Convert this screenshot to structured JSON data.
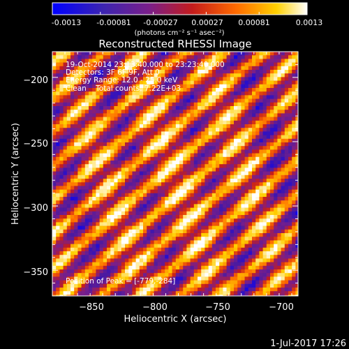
{
  "colorbar": {
    "ticks": [
      "-0.0013",
      "-0.00081",
      "-0.00027",
      "0.00027",
      "0.00081",
      "0.0013"
    ],
    "unit_label": "(photons cm⁻² s⁻¹ asec⁻²)",
    "range": [
      -0.0013,
      0.0013
    ]
  },
  "chart_data": {
    "type": "heatmap",
    "title": "Reconstructed RHESSI Image",
    "xlabel": "Heliocentric X (arcsec)",
    "ylabel": "Heliocentric Y (arcsec)",
    "xlim": [
      -875,
      -680
    ],
    "ylim": [
      -370,
      -180
    ],
    "x_ticks": [
      -850,
      -800,
      -750,
      -700
    ],
    "y_ticks": [
      -200,
      -250,
      -300,
      -350
    ],
    "x_tick_labels": [
      "−850",
      "−800",
      "−750",
      "−700"
    ],
    "y_tick_labels": [
      "−200",
      "−250",
      "−300",
      "−350"
    ],
    "annotations": [
      "19-Oct-2014 23:13:40.000 to 23:23:40.000",
      "Detectors: 3F 6F 9F, Att 0",
      "Energy Range: 12.0 - 25.0 keV",
      "Clean    Total counts: 7.22E+03"
    ],
    "peak_label": "Position of Peak = [-779,-284]",
    "colormap": "rhessi-blue-purple-red-yellow-white",
    "color_stops": [
      "#0000ff",
      "#4b1aa0",
      "#7a1f8a",
      "#c41c1c",
      "#ff6a00",
      "#ffd000",
      "#ffffff"
    ]
  },
  "footer": {
    "date": "1-Jul-2017 17:26"
  }
}
